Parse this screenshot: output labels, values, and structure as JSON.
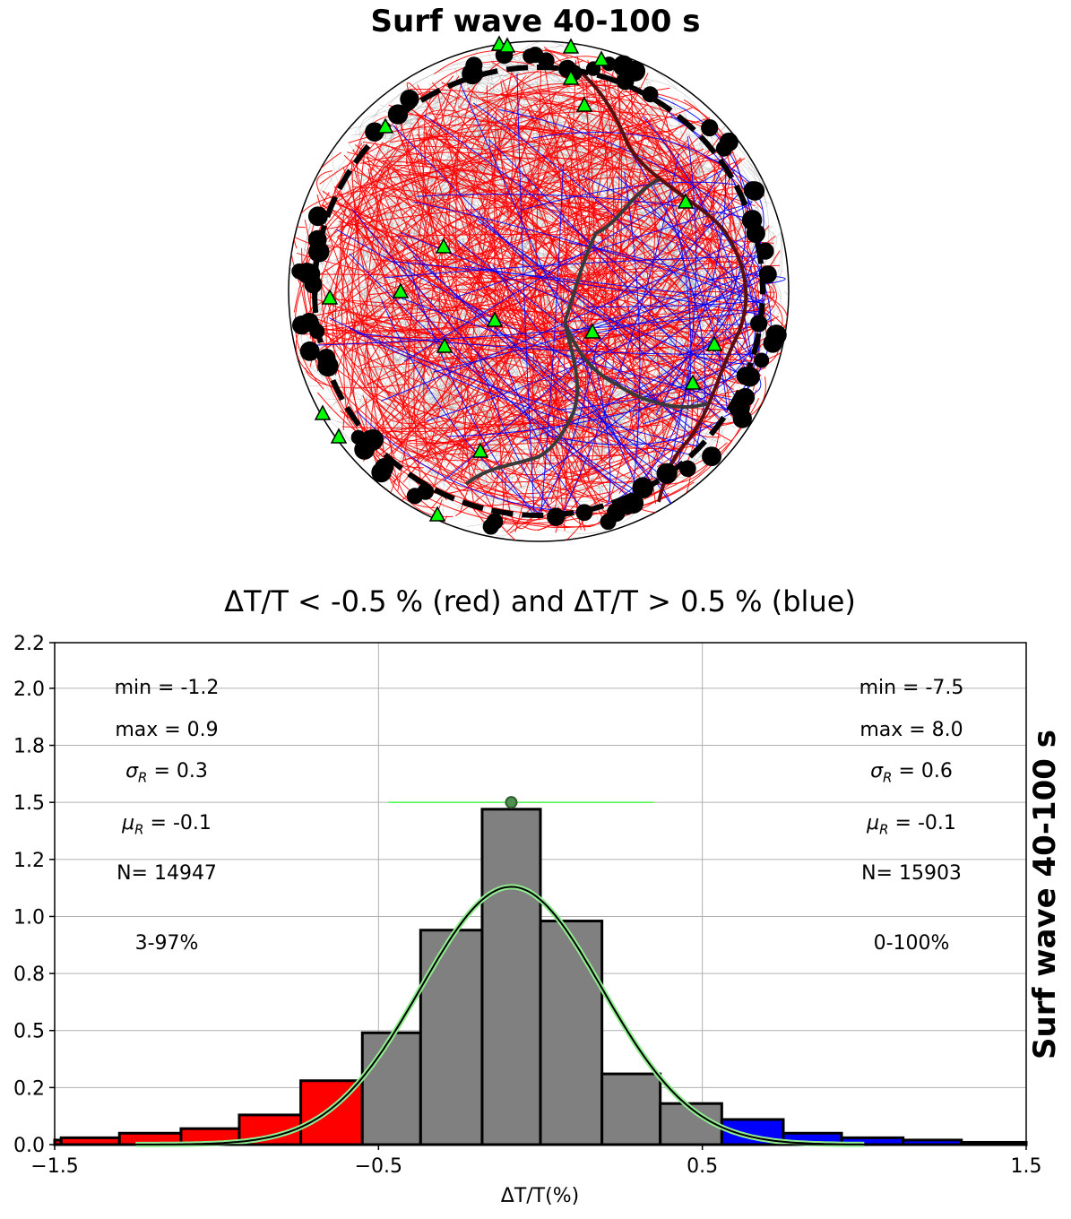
{
  "header": {
    "title": "Surf wave 40-100 s",
    "side_title": "Surf wave 40-100 s"
  },
  "map": {
    "projection": "orthographic",
    "ray_colors": {
      "background": "#9a9a9a",
      "slow": "#ff0000",
      "fast": "#0000ff"
    },
    "station_color": "#00ff00",
    "event_color": "#000000"
  },
  "chart_data": {
    "type": "bar",
    "title": "ΔT/T < -0.5 % (red)   and  ΔT/T > 0.5 %  (blue)",
    "xlabel": "ΔT/T(%)",
    "ylabel": "",
    "xlim": [
      -1.5,
      1.5
    ],
    "ylim": [
      0,
      2.2
    ],
    "xticks": [
      -1.5,
      -0.5,
      0.5,
      1.5
    ],
    "xtick_labels": [
      "−1.5",
      "−0.5",
      "0.5",
      "1.5"
    ],
    "yticks": [
      0,
      0.25,
      0.5,
      0.75,
      1.0,
      1.25,
      1.5,
      1.75,
      2.0,
      2.2
    ],
    "ytick_labels": [
      "0.0",
      "0.2",
      "0.5",
      "0.8",
      "1.0",
      "1.2",
      "1.5",
      "1.8",
      "2.0",
      "2.2"
    ],
    "grid": true,
    "bins": [
      {
        "x0": -1.5,
        "x1": -1.48,
        "value": 0.02,
        "color": "#ff0000"
      },
      {
        "x0": -1.48,
        "x1": -1.3,
        "value": 0.03,
        "color": "#ff0000"
      },
      {
        "x0": -1.3,
        "x1": -1.11,
        "value": 0.05,
        "color": "#ff0000"
      },
      {
        "x0": -1.11,
        "x1": -0.93,
        "value": 0.07,
        "color": "#ff0000"
      },
      {
        "x0": -0.93,
        "x1": -0.74,
        "value": 0.13,
        "color": "#ff0000"
      },
      {
        "x0": -0.74,
        "x1": -0.55,
        "value": 0.28,
        "color": "#ff0000"
      },
      {
        "x0": -0.55,
        "x1": -0.37,
        "value": 0.49,
        "color": "#808080"
      },
      {
        "x0": -0.37,
        "x1": -0.18,
        "value": 0.94,
        "color": "#808080"
      },
      {
        "x0": -0.18,
        "x1": 0.0,
        "value": 1.47,
        "color": "#808080"
      },
      {
        "x0": 0.0,
        "x1": 0.19,
        "value": 0.98,
        "color": "#808080"
      },
      {
        "x0": 0.19,
        "x1": 0.37,
        "value": 0.31,
        "color": "#808080"
      },
      {
        "x0": 0.37,
        "x1": 0.56,
        "value": 0.18,
        "color": "#808080"
      },
      {
        "x0": 0.56,
        "x1": 0.75,
        "value": 0.11,
        "color": "#0000ff"
      },
      {
        "x0": 0.75,
        "x1": 0.93,
        "value": 0.05,
        "color": "#0000ff"
      },
      {
        "x0": 0.93,
        "x1": 1.12,
        "value": 0.03,
        "color": "#0000ff"
      },
      {
        "x0": 1.12,
        "x1": 1.3,
        "value": 0.02,
        "color": "#0000ff"
      },
      {
        "x0": 1.3,
        "x1": 1.5,
        "value": 0.01,
        "color": "#000000"
      }
    ],
    "gaussian_fit": {
      "mean": -0.09,
      "sigma": 0.28,
      "peak": 1.13,
      "x_range": [
        -1.25,
        1.0
      ],
      "color": "#90ee90"
    },
    "median_marker": {
      "x": -0.09,
      "y": 1.5,
      "color": "#4f8f4f",
      "line_x": [
        -0.47,
        0.35
      ],
      "line_color": "#00ff00"
    },
    "stats_left": {
      "min": "min = -1.2",
      "max": "max = 0.9",
      "sigma": "= 0.3",
      "mu": "= -0.1",
      "n": "N= 14947",
      "range": "3-97%"
    },
    "stats_right": {
      "min": "min = -7.5",
      "max": "max = 8.0",
      "sigma": "= 0.6",
      "mu": "= -0.1",
      "n": "N= 15903",
      "range": "0-100%"
    }
  }
}
